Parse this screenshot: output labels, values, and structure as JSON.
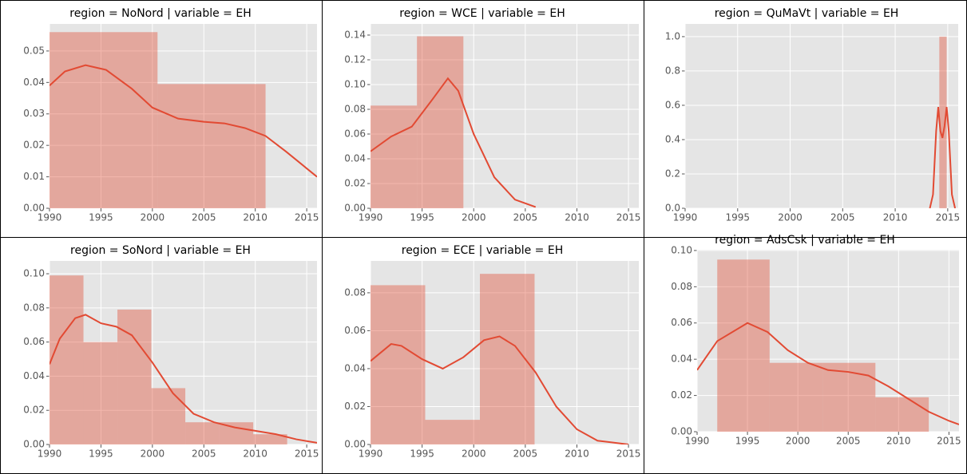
{
  "chart_data": [
    {
      "type": "histogram",
      "title": "region = NoNord | variable = EH",
      "color": "#e24a33",
      "bins": [
        1990,
        2000.5,
        2011
      ],
      "values": [
        0.056,
        0.0395
      ],
      "kde": {
        "color": "#e24a33",
        "x": [
          1990,
          1991.5,
          1993.5,
          1995.5,
          1998,
          2000,
          2002.5,
          2005,
          2007,
          2009,
          2011,
          2013,
          2016
        ],
        "values": [
          0.039,
          0.0435,
          0.0455,
          0.044,
          0.038,
          0.032,
          0.0285,
          0.0275,
          0.027,
          0.0255,
          0.023,
          0.018,
          0.01
        ]
      },
      "xlim": [
        1990,
        2016
      ],
      "ylim": [
        0,
        0.0586
      ],
      "xticks": [
        1990,
        1995,
        2000,
        2005,
        2010,
        2015
      ],
      "yticks": [
        {
          "value": 0,
          "label": "0.00"
        },
        0.01,
        0.02,
        0.03,
        0.04,
        0.05
      ],
      "grid": true
    },
    {
      "type": "histogram",
      "title": "region = WCE | variable = EH",
      "color": "#e24a33",
      "bins": [
        1990,
        1994.5,
        1999
      ],
      "values": [
        0.083,
        0.139
      ],
      "kde": {
        "color": "#e24a33",
        "x": [
          1990,
          1992,
          1994,
          1996,
          1997.5,
          1998.5,
          2000,
          2002,
          2004,
          2006
        ],
        "values": [
          0.046,
          0.058,
          0.066,
          0.088,
          0.105,
          0.095,
          0.06,
          0.025,
          0.007,
          0.001
        ]
      },
      "xlim": [
        1990,
        2016
      ],
      "ylim": [
        0,
        0.149
      ],
      "xticks": [
        1990,
        1995,
        2000,
        2005,
        2010,
        2015
      ],
      "yticks": [
        {
          "value": 0,
          "label": "0.00"
        },
        0.02,
        0.04,
        0.06,
        0.08,
        {
          "value": 0.1,
          "label": "0.10"
        },
        0.12,
        0.14
      ],
      "grid": true
    },
    {
      "type": "histogram",
      "title": "region = QuMaVt | variable = EH",
      "color": "#e24a33",
      "bins": [
        2014.2,
        2014.9
      ],
      "values": [
        1.0
      ],
      "kde": {
        "color": "#e24a33",
        "x": [
          2013.3,
          2013.6,
          2013.9,
          2014.1,
          2014.3,
          2014.5,
          2014.7,
          2014.9,
          2015.1,
          2015.4,
          2015.7
        ],
        "values": [
          0,
          0.08,
          0.45,
          0.59,
          0.45,
          0.41,
          0.48,
          0.59,
          0.45,
          0.08,
          0
        ]
      },
      "xlim": [
        1990,
        2016
      ],
      "ylim": [
        0,
        1.074
      ],
      "xticks": [
        1990,
        1995,
        2000,
        2005,
        2010,
        2015
      ],
      "yticks": [
        {
          "value": 0,
          "label": "0.0"
        },
        0.2,
        0.4,
        0.6,
        0.8,
        {
          "value": 1,
          "label": "1.0"
        }
      ],
      "grid": true
    },
    {
      "type": "histogram",
      "title": "region = SoNord | variable = EH",
      "color": "#e24a33",
      "bins": [
        1990,
        1993.3,
        1996.6,
        1999.9,
        2003.2,
        2006.5,
        2009.8,
        2013.1
      ],
      "values": [
        0.099,
        0.06,
        0.079,
        0.033,
        0.013,
        0.013,
        0.006
      ],
      "kde": {
        "color": "#e24a33",
        "x": [
          1990,
          1991,
          1992.5,
          1993.5,
          1995,
          1996.5,
          1998,
          2000,
          2002,
          2004,
          2006,
          2008,
          2010,
          2012,
          2014,
          2016
        ],
        "values": [
          0.047,
          0.062,
          0.074,
          0.076,
          0.071,
          0.069,
          0.064,
          0.048,
          0.03,
          0.018,
          0.013,
          0.01,
          0.008,
          0.006,
          0.003,
          0.001
        ]
      },
      "xlim": [
        1990,
        2016
      ],
      "ylim": [
        0,
        0.1075
      ],
      "xticks": [
        1990,
        1995,
        2000,
        2005,
        2010,
        2015
      ],
      "yticks": [
        {
          "value": 0,
          "label": "0.00"
        },
        0.02,
        0.04,
        0.06,
        0.08,
        {
          "value": 0.1,
          "label": "0.10"
        }
      ],
      "grid": true
    },
    {
      "type": "histogram",
      "title": "region = ECE | variable = EH",
      "color": "#e24a33",
      "bins": [
        1990,
        1995.3,
        2000.6,
        2005.9
      ],
      "values": [
        0.084,
        0.013,
        0.09
      ],
      "kde": {
        "color": "#e24a33",
        "x": [
          1990,
          1992,
          1993,
          1995,
          1997,
          1999,
          2001,
          2002.5,
          2004,
          2006,
          2008,
          2010,
          2012,
          2015
        ],
        "values": [
          0.044,
          0.053,
          0.052,
          0.045,
          0.04,
          0.046,
          0.055,
          0.057,
          0.052,
          0.038,
          0.02,
          0.008,
          0.002,
          0
        ]
      },
      "xlim": [
        1990,
        2016
      ],
      "ylim": [
        0,
        0.0968
      ],
      "xticks": [
        1990,
        1995,
        2000,
        2005,
        2010,
        2015
      ],
      "yticks": [
        {
          "value": 0,
          "label": "0.00"
        },
        0.02,
        0.04,
        0.06,
        0.08
      ],
      "grid": true
    },
    {
      "type": "histogram",
      "title": "region = AdsCsk | variable = EH",
      "color": "#e24a33",
      "bins": [
        1992,
        1997.2,
        2002.5,
        2007.7,
        2013
      ],
      "values": [
        0.095,
        0.038,
        0.038,
        0.019
      ],
      "kde": {
        "color": "#e24a33",
        "x": [
          1990,
          1992,
          1995,
          1997,
          1999,
          2001,
          2003,
          2005,
          2007,
          2009,
          2011,
          2013,
          2015,
          2016
        ],
        "values": [
          0.034,
          0.05,
          0.06,
          0.055,
          0.045,
          0.038,
          0.034,
          0.033,
          0.031,
          0.025,
          0.018,
          0.011,
          0.006,
          0.004
        ]
      },
      "xlim": [
        1990,
        2016
      ],
      "ylim": [
        0,
        0.1004
      ],
      "xticks": [
        1990,
        1995,
        2000,
        2005,
        2010,
        2015
      ],
      "yticks": [
        {
          "value": 0,
          "label": "0.00"
        },
        0.02,
        0.04,
        0.06,
        0.08,
        {
          "value": 0.1,
          "label": "0.10"
        }
      ],
      "grid": true
    }
  ]
}
